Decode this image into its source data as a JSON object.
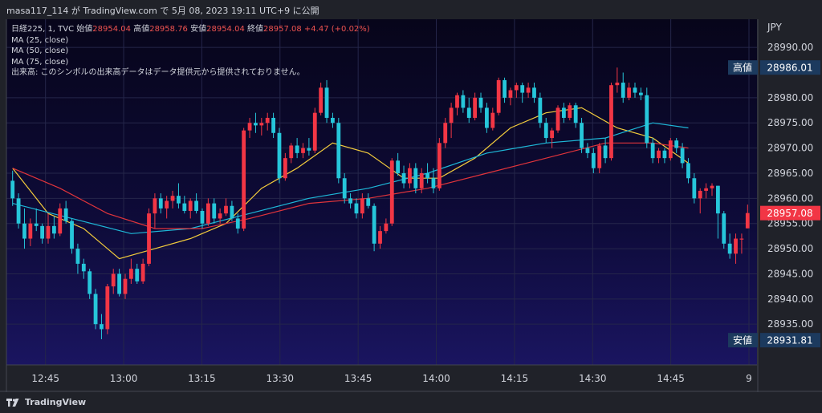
{
  "header": {
    "user": "masa117_114",
    "connector": "が",
    "site": "TradingView.com",
    "posted": "で 5月 08, 2023 19:11 UTC+9 に公開"
  },
  "legend": {
    "symbol": "日経225, 1, TVC",
    "open_label": "始値",
    "open": "28954.04",
    "high_label": "高値",
    "high": "28958.76",
    "low_label": "安値",
    "low": "28954.04",
    "close_label": "終値",
    "close": "28957.08",
    "change": "+4.47 (+0.02%)",
    "ma25": "MA (25, close)",
    "ma50": "MA (50, close)",
    "ma75": "MA (75, close)",
    "volume_note": "出来高: このシンボルの出来高データはデータ提供元から提供されておりません。"
  },
  "footer": {
    "brand": "TradingView"
  },
  "chart_data": {
    "type": "candlestick",
    "currency": "JPY",
    "ylim": [
      28926.9,
      28995.6
    ],
    "yticks": [
      28935,
      28940,
      28945,
      28950,
      28955,
      28960,
      28965,
      28970,
      28975,
      28980,
      28990
    ],
    "ytick_labels": [
      "28935.00",
      "28940.00",
      "28945.00",
      "28950.00",
      "28955.00",
      "28960.00",
      "28965.00",
      "28970.00",
      "28975.00",
      "28980.00",
      "28990.00"
    ],
    "xticks": [
      12.75,
      13.0,
      13.25,
      13.5,
      13.75,
      14.0,
      14.25,
      14.5,
      14.75,
      15.0
    ],
    "xtick_labels": [
      "12:45",
      "13:00",
      "13:15",
      "13:30",
      "13:45",
      "14:00",
      "14:15",
      "14:30",
      "14:45",
      "9"
    ],
    "x_start": 12.625,
    "x_end": 15.0,
    "markers": [
      {
        "label": "高値",
        "value": 28986.01,
        "text": "28986.01",
        "color": "#1c3a5e"
      },
      {
        "label": "",
        "value": 28957.08,
        "text": "28957.08",
        "color": "#f23645"
      },
      {
        "label": "安値",
        "value": 28931.81,
        "text": "28931.81",
        "color": "#1c3a5e"
      }
    ],
    "candles": [
      [
        28963.5,
        28965.5,
        28958.5,
        28960.0
      ],
      [
        28960.0,
        28961.0,
        28954.0,
        28955.0
      ],
      [
        28955.0,
        28958.0,
        28950.0,
        28952.0
      ],
      [
        28952.0,
        28956.0,
        28950.5,
        28955.0
      ],
      [
        28955.0,
        28958.0,
        28953.5,
        28954.5
      ],
      [
        28954.5,
        28955.0,
        28951.0,
        28952.0
      ],
      [
        28952.0,
        28957.0,
        28951.0,
        28954.5
      ],
      [
        28954.5,
        28956.5,
        28952.0,
        28953.0
      ],
      [
        28953.0,
        28959.0,
        28952.5,
        28958.0
      ],
      [
        28958.0,
        28959.5,
        28955.0,
        28955.5
      ],
      [
        28955.5,
        28956.0,
        28949.0,
        28950.0
      ],
      [
        28950.0,
        28951.0,
        28945.0,
        28947.0
      ],
      [
        28947.0,
        28948.0,
        28944.0,
        28945.5
      ],
      [
        28945.5,
        28946.0,
        28940.0,
        28941.0
      ],
      [
        28941.0,
        28942.0,
        28934.0,
        28935.0
      ],
      [
        28935.0,
        28937.0,
        28932.0,
        28934.0
      ],
      [
        28934.0,
        28943.0,
        28933.0,
        28942.5
      ],
      [
        28942.5,
        28946.0,
        28941.0,
        28945.0
      ],
      [
        28945.0,
        28946.0,
        28940.5,
        28941.0
      ],
      [
        28941.0,
        28945.0,
        28940.0,
        28944.0
      ],
      [
        28944.0,
        28948.0,
        28943.0,
        28946.0
      ],
      [
        28946.0,
        28947.0,
        28943.0,
        28943.5
      ],
      [
        28943.5,
        28948.0,
        28943.0,
        28947.0
      ],
      [
        28947.0,
        28958.0,
        28946.5,
        28957.0
      ],
      [
        28957.0,
        28961.0,
        28954.0,
        28960.0
      ],
      [
        28960.0,
        28961.0,
        28957.0,
        28958.0
      ],
      [
        28958.0,
        28960.5,
        28956.0,
        28959.5
      ],
      [
        28959.5,
        28961.5,
        28958.0,
        28960.5
      ],
      [
        28960.5,
        28963.0,
        28958.0,
        28959.0
      ],
      [
        28959.0,
        28960.5,
        28957.0,
        28957.5
      ],
      [
        28957.5,
        28960.0,
        28956.0,
        28959.5
      ],
      [
        28959.5,
        28961.0,
        28957.0,
        28957.5
      ],
      [
        28957.5,
        28958.0,
        28954.0,
        28955.0
      ],
      [
        28955.0,
        28960.0,
        28954.5,
        28959.0
      ],
      [
        28959.0,
        28960.0,
        28955.0,
        28956.0
      ],
      [
        28956.0,
        28958.0,
        28955.0,
        28957.0
      ],
      [
        28957.0,
        28960.0,
        28956.5,
        28958.5
      ],
      [
        28958.5,
        28959.5,
        28955.5,
        28956.0
      ],
      [
        28956.0,
        28957.0,
        28953.0,
        28954.0
      ],
      [
        28954.0,
        28974.0,
        28953.5,
        28973.5
      ],
      [
        28973.5,
        28976.0,
        28972.0,
        28975.0
      ],
      [
        28975.0,
        28977.0,
        28973.0,
        28974.5
      ],
      [
        28974.5,
        28976.0,
        28972.5,
        28975.0
      ],
      [
        28975.0,
        28977.0,
        28973.5,
        28976.0
      ],
      [
        28976.0,
        28977.0,
        28972.0,
        28973.0
      ],
      [
        28973.0,
        28974.0,
        28963.0,
        28964.0
      ],
      [
        28964.0,
        28969.0,
        28963.5,
        28968.0
      ],
      [
        28968.0,
        28971.0,
        28967.0,
        28970.5
      ],
      [
        28970.5,
        28972.0,
        28968.0,
        28969.0
      ],
      [
        28969.0,
        28971.0,
        28968.0,
        28970.0
      ],
      [
        28970.0,
        28972.0,
        28968.5,
        28969.5
      ],
      [
        28969.5,
        28978.0,
        28969.0,
        28977.0
      ],
      [
        28977.0,
        28983.0,
        28976.5,
        28982.0
      ],
      [
        28982.0,
        28983.5,
        28975.0,
        28976.0
      ],
      [
        28976.0,
        28977.0,
        28974.0,
        28975.0
      ],
      [
        28975.0,
        28976.0,
        28963.0,
        28964.0
      ],
      [
        28964.0,
        28965.0,
        28959.0,
        28960.0
      ],
      [
        28960.0,
        28961.0,
        28958.0,
        28959.0
      ],
      [
        28959.0,
        28960.0,
        28956.0,
        28957.0
      ],
      [
        28957.0,
        28961.0,
        28956.0,
        28960.0
      ],
      [
        28960.0,
        28961.0,
        28958.0,
        28958.5
      ],
      [
        28958.5,
        28959.0,
        28949.5,
        28951.0
      ],
      [
        28951.0,
        28954.5,
        28950.0,
        28953.5
      ],
      [
        28953.5,
        28956.0,
        28953.0,
        28955.0
      ],
      [
        28955.0,
        28968.0,
        28954.5,
        28967.5
      ],
      [
        28967.5,
        28969.0,
        28964.5,
        28965.0
      ],
      [
        28965.0,
        28966.5,
        28962.0,
        28963.0
      ],
      [
        28963.0,
        28967.0,
        28962.0,
        28966.0
      ],
      [
        28966.0,
        28967.0,
        28961.0,
        28962.0
      ],
      [
        28962.0,
        28966.0,
        28961.0,
        28965.0
      ],
      [
        28965.0,
        28967.0,
        28963.0,
        28964.0
      ],
      [
        28964.0,
        28966.0,
        28961.0,
        28962.0
      ],
      [
        28962.0,
        28972.0,
        28961.5,
        28971.0
      ],
      [
        28971.0,
        28976.0,
        28970.0,
        28975.0
      ],
      [
        28975.0,
        28979.0,
        28972.0,
        28978.0
      ],
      [
        28978.0,
        28981.0,
        28976.5,
        28980.5
      ],
      [
        28980.5,
        28981.5,
        28977.0,
        28978.0
      ],
      [
        28978.0,
        28980.0,
        28975.0,
        28976.0
      ],
      [
        28976.0,
        28981.0,
        28975.5,
        28980.0
      ],
      [
        28980.0,
        28981.0,
        28977.0,
        28978.0
      ],
      [
        28978.0,
        28979.0,
        28973.0,
        28974.0
      ],
      [
        28974.0,
        28978.0,
        28973.5,
        28977.0
      ],
      [
        28977.0,
        28984.0,
        28976.5,
        28983.5
      ],
      [
        28983.5,
        28984.0,
        28979.0,
        28980.0
      ],
      [
        28980.0,
        28982.0,
        28978.5,
        28981.5
      ],
      [
        28981.5,
        28983.0,
        28980.0,
        28982.5
      ],
      [
        28982.5,
        28983.0,
        28979.0,
        28981.0
      ],
      [
        28981.0,
        28983.0,
        28980.0,
        28982.0
      ],
      [
        28982.0,
        28983.0,
        28979.0,
        28980.0
      ],
      [
        28980.0,
        28981.0,
        28974.0,
        28975.0
      ],
      [
        28975.0,
        28976.0,
        28971.0,
        28972.0
      ],
      [
        28972.0,
        28974.0,
        28970.0,
        28973.5
      ],
      [
        28973.5,
        28978.5,
        28973.0,
        28978.0
      ],
      [
        28978.0,
        28979.0,
        28975.0,
        28976.0
      ],
      [
        28976.0,
        28979.0,
        28975.5,
        28978.5
      ],
      [
        28978.5,
        28979.0,
        28974.0,
        28975.0
      ],
      [
        28975.0,
        28976.0,
        28969.0,
        28970.0
      ],
      [
        28970.0,
        28971.0,
        28968.0,
        28969.0
      ],
      [
        28969.0,
        28970.0,
        28965.0,
        28966.0
      ],
      [
        28966.0,
        28971.0,
        28965.0,
        28970.5
      ],
      [
        28970.5,
        28972.0,
        28967.0,
        28968.0
      ],
      [
        28968.0,
        28983.0,
        28967.5,
        28982.5
      ],
      [
        28982.5,
        28986.0,
        28981.0,
        28983.0
      ],
      [
        28983.0,
        28985.0,
        28979.0,
        28980.0
      ],
      [
        28980.0,
        28983.0,
        28979.5,
        28982.0
      ],
      [
        28982.0,
        28983.0,
        28980.0,
        28981.0
      ],
      [
        28981.0,
        28982.0,
        28979.5,
        28980.5
      ],
      [
        28980.5,
        28982.0,
        28970.0,
        28971.0
      ],
      [
        28971.0,
        28972.0,
        28967.0,
        28968.0
      ],
      [
        28968.0,
        28970.0,
        28967.0,
        28969.5
      ],
      [
        28969.5,
        28970.0,
        28967.0,
        28968.0
      ],
      [
        28968.0,
        28972.0,
        28967.5,
        28971.5
      ],
      [
        28971.5,
        28972.0,
        28969.0,
        28970.0
      ],
      [
        28970.0,
        28971.0,
        28966.0,
        28967.0
      ],
      [
        28967.0,
        28968.0,
        28963.0,
        28964.0
      ],
      [
        28964.0,
        28965.0,
        28959.0,
        28960.0
      ],
      [
        28960.0,
        28962.0,
        28957.0,
        28961.5
      ],
      [
        28961.5,
        28963.0,
        28960.0,
        28962.0
      ],
      [
        28962.0,
        28963.0,
        28960.5,
        28962.5
      ],
      [
        28962.5,
        28962.5,
        28952.0,
        28957.0
      ],
      [
        28957.0,
        28957.5,
        28950.0,
        28951.0
      ],
      [
        28951.0,
        28953.0,
        28948.0,
        28949.0
      ],
      [
        28949.0,
        28953.0,
        28947.0,
        28952.0
      ],
      [
        28952.0,
        28953.0,
        28949.0,
        28952.0
      ],
      [
        28954.04,
        28958.76,
        28954.04,
        28957.08
      ]
    ],
    "series": [
      {
        "name": "MA (25, close)",
        "color": "#f2cb3c",
        "values": [
          [
            0,
            28966
          ],
          [
            6,
            28957
          ],
          [
            12,
            28954
          ],
          [
            18,
            28948
          ],
          [
            24,
            28950
          ],
          [
            30,
            28952
          ],
          [
            36,
            28955
          ],
          [
            42,
            28962
          ],
          [
            48,
            28966
          ],
          [
            54,
            28971
          ],
          [
            60,
            28969
          ],
          [
            66,
            28964
          ],
          [
            72,
            28964
          ],
          [
            78,
            28968
          ],
          [
            84,
            28974
          ],
          [
            90,
            28977
          ],
          [
            96,
            28978
          ],
          [
            102,
            28974
          ],
          [
            108,
            28972
          ],
          [
            114,
            28967
          ]
        ]
      },
      {
        "name": "MA (50, close)",
        "color": "#1eb8d8",
        "values": [
          [
            0,
            28959
          ],
          [
            10,
            28956
          ],
          [
            20,
            28953
          ],
          [
            30,
            28954
          ],
          [
            40,
            28957
          ],
          [
            50,
            28960
          ],
          [
            60,
            28962
          ],
          [
            70,
            28965
          ],
          [
            80,
            28969
          ],
          [
            90,
            28971
          ],
          [
            100,
            28972
          ],
          [
            108,
            28975
          ],
          [
            114,
            28974
          ]
        ]
      },
      {
        "name": "MA (75, close)",
        "color": "#e0343b",
        "values": [
          [
            0,
            28966
          ],
          [
            8,
            28962
          ],
          [
            16,
            28957
          ],
          [
            24,
            28954
          ],
          [
            32,
            28954
          ],
          [
            40,
            28956
          ],
          [
            50,
            28959
          ],
          [
            60,
            28960
          ],
          [
            70,
            28962
          ],
          [
            80,
            28965
          ],
          [
            90,
            28968
          ],
          [
            100,
            28971
          ],
          [
            108,
            28971
          ],
          [
            114,
            28970
          ]
        ]
      }
    ]
  }
}
